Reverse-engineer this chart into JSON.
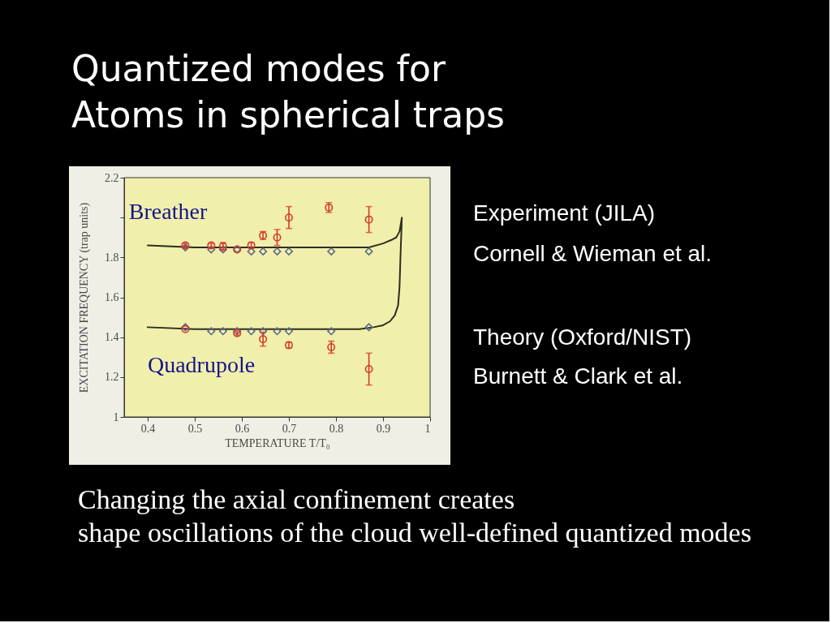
{
  "chart_data": {
    "type": "scatter",
    "title": "Quantized modes for\nAtoms in spherical traps",
    "xlabel": "TEMPERATURE T/T₀",
    "ylabel": "EXCITATION FREQUENCY (trap units)",
    "xlim": [
      0.35,
      1.0
    ],
    "xticks": [
      0.4,
      0.5,
      0.6,
      0.7,
      0.8,
      0.9,
      1
    ],
    "ylim": [
      1,
      2.2
    ],
    "yticks": [
      1,
      1.2,
      1.4,
      1.6,
      1.8,
      {
        "value": 2,
        "label": null
      },
      2.2
    ],
    "annotations": [
      "Breather",
      "Quadrupole",
      "Experiment  (JILA)",
      "Cornell & Wieman et al.",
      "Theory (Oxford/NIST)",
      "Burnett & Clark et al.",
      "Changing the axial confinement creates",
      "shape oscillations of the cloud well-defined quantized modes"
    ],
    "series": [
      {
        "type": "line",
        "color": "#2e2e20",
        "marker": "none",
        "line_style": "solid",
        "x": [
          0.4,
          0.5,
          0.6,
          0.7,
          0.8,
          0.85,
          0.88,
          0.9,
          0.915,
          0.925,
          0.932,
          0.935,
          0.937,
          0.94,
          0.935,
          0.928,
          0.92,
          0.9,
          0.87,
          0.8,
          0.7,
          0.6,
          0.5,
          0.4
        ],
        "values": [
          1.45,
          1.44,
          1.44,
          1.44,
          1.44,
          1.44,
          1.45,
          1.46,
          1.48,
          1.51,
          1.56,
          1.65,
          1.8,
          2.0,
          1.93,
          1.9,
          1.89,
          1.87,
          1.85,
          1.85,
          1.85,
          1.85,
          1.85,
          1.86
        ]
      },
      {
        "color": "#5a6886",
        "marker": "diamond",
        "x": [
          0.48,
          0.535,
          0.56,
          0.59,
          0.62,
          0.645,
          0.675,
          0.7,
          0.79,
          0.87,
          0.48,
          0.535,
          0.56,
          0.59,
          0.62,
          0.645,
          0.675,
          0.7,
          0.79,
          0.87
        ],
        "values": [
          1.85,
          1.84,
          1.84,
          1.84,
          1.83,
          1.83,
          1.83,
          1.83,
          1.83,
          1.83,
          1.45,
          1.43,
          1.43,
          1.43,
          1.43,
          1.43,
          1.43,
          1.43,
          1.43,
          1.45
        ]
      },
      {
        "color": "#d33a2c",
        "marker": "circle",
        "x": [
          0.48,
          0.535,
          0.56,
          0.59,
          0.62,
          0.645,
          0.675,
          0.7,
          0.785,
          0.87,
          0.48,
          0.59,
          0.645,
          0.7,
          0.79,
          0.87
        ],
        "values": [
          1.86,
          1.86,
          1.855,
          1.84,
          1.86,
          1.91,
          1.9,
          2.0,
          2.05,
          1.99,
          1.44,
          1.42,
          1.39,
          1.36,
          1.35,
          1.24
        ],
        "errors": [
          0.01,
          0.01,
          0.02,
          null,
          0.015,
          0.02,
          0.04,
          0.055,
          0.025,
          0.065,
          null,
          0.01,
          0.035,
          0.015,
          0.03,
          0.08
        ]
      }
    ]
  }
}
